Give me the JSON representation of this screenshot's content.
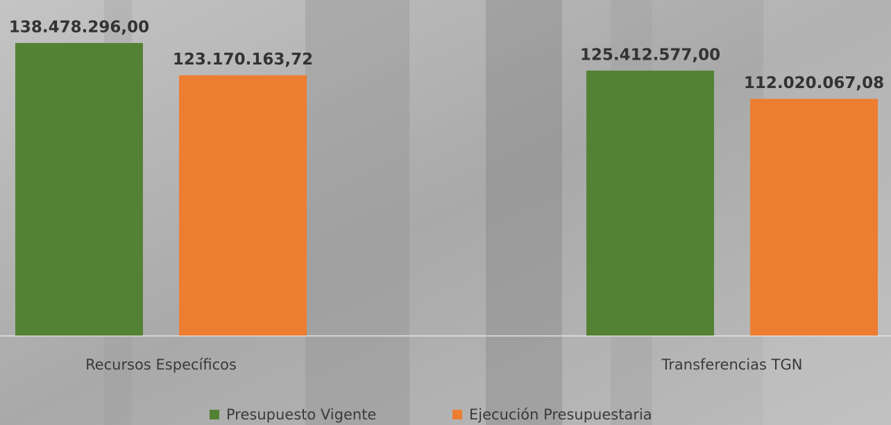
{
  "chart_data": {
    "type": "bar",
    "categories": [
      "Recursos Específicos",
      "Transferencias TGN"
    ],
    "series": [
      {
        "name": "Presupuesto Vigente",
        "color": "#548235",
        "values": [
          138478296.0,
          125412577.0
        ],
        "value_labels": [
          "138.478.296,00",
          "125.412.577,00"
        ]
      },
      {
        "name": "Ejecución Presupuestaria",
        "color": "#ed7d31",
        "values": [
          123170163.72,
          112020067.08
        ],
        "value_labels": [
          "123.170.163,72",
          "112.020.067,08"
        ]
      }
    ],
    "ylim": [
      0,
      160000000
    ]
  }
}
